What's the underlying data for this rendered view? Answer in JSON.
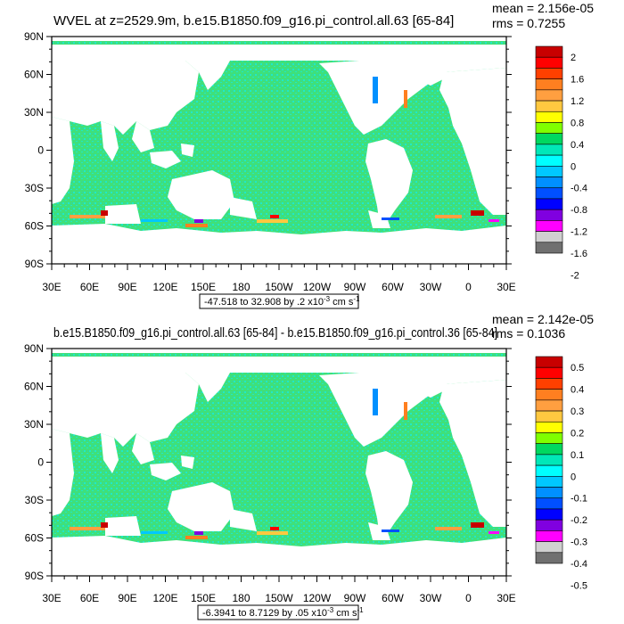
{
  "panels": [
    {
      "title": "WVEL at z=2529.9m, b.e15.B1850.f09_g16.pi_control.all.63 [65-84]",
      "mean": "mean = 2.156e-05",
      "rms": "rms = 0.7255",
      "range_label": "-47.518 to 32.908 by .2 x10",
      "range_exp": "-3",
      "range_unit_pre": " cm s",
      "range_unit_exp": "-1",
      "colorbar_labels": [
        "2",
        "1.6",
        "1.2",
        "0.8",
        "0.4",
        "0",
        "-0.4",
        "-0.8",
        "-1.2",
        "-1.6",
        "-2"
      ]
    },
    {
      "title": "b.e15.B1850.f09_g16.pi_control.all.63 [65-84] - b.e15.B1850.f09_g16.pi_control.36 [65-84]",
      "mean": "mean = 2.142e-05",
      "rms": "rms = 0.1036",
      "range_label": "-6.3941 to 8.7129 by .05 x10",
      "range_exp": "-3",
      "range_unit_pre": " cm s",
      "range_unit_exp": "-1",
      "colorbar_labels": [
        "0.5",
        "0.4",
        "0.3",
        "0.2",
        "0.1",
        "0",
        "-0.1",
        "-0.2",
        "-0.3",
        "-0.4",
        "-0.5"
      ]
    }
  ],
  "lat_labels": [
    "90N",
    "60N",
    "30N",
    "0",
    "30S",
    "60S",
    "90S"
  ],
  "lon_labels": [
    "30E",
    "60E",
    "90E",
    "120E",
    "150E",
    "180",
    "150W",
    "120W",
    "90W",
    "60W",
    "30W",
    "0",
    "30E"
  ],
  "colors": {
    "ocean_base": "#3fe07a",
    "cyan_speckle": "#20e8c8",
    "colorbar": [
      "#c80000",
      "#ff0000",
      "#ff4000",
      "#ff7f20",
      "#ff9f40",
      "#ffc840",
      "#ffff00",
      "#80ff00",
      "#00d860",
      "#00e8b8",
      "#00ffff",
      "#00c8ff",
      "#0090ff",
      "#0050ff",
      "#0000ff",
      "#8000e0",
      "#ff00ff",
      "#d0d0d0",
      "#707070"
    ]
  },
  "map_features": [
    "ocean",
    "continents-land-white"
  ]
}
